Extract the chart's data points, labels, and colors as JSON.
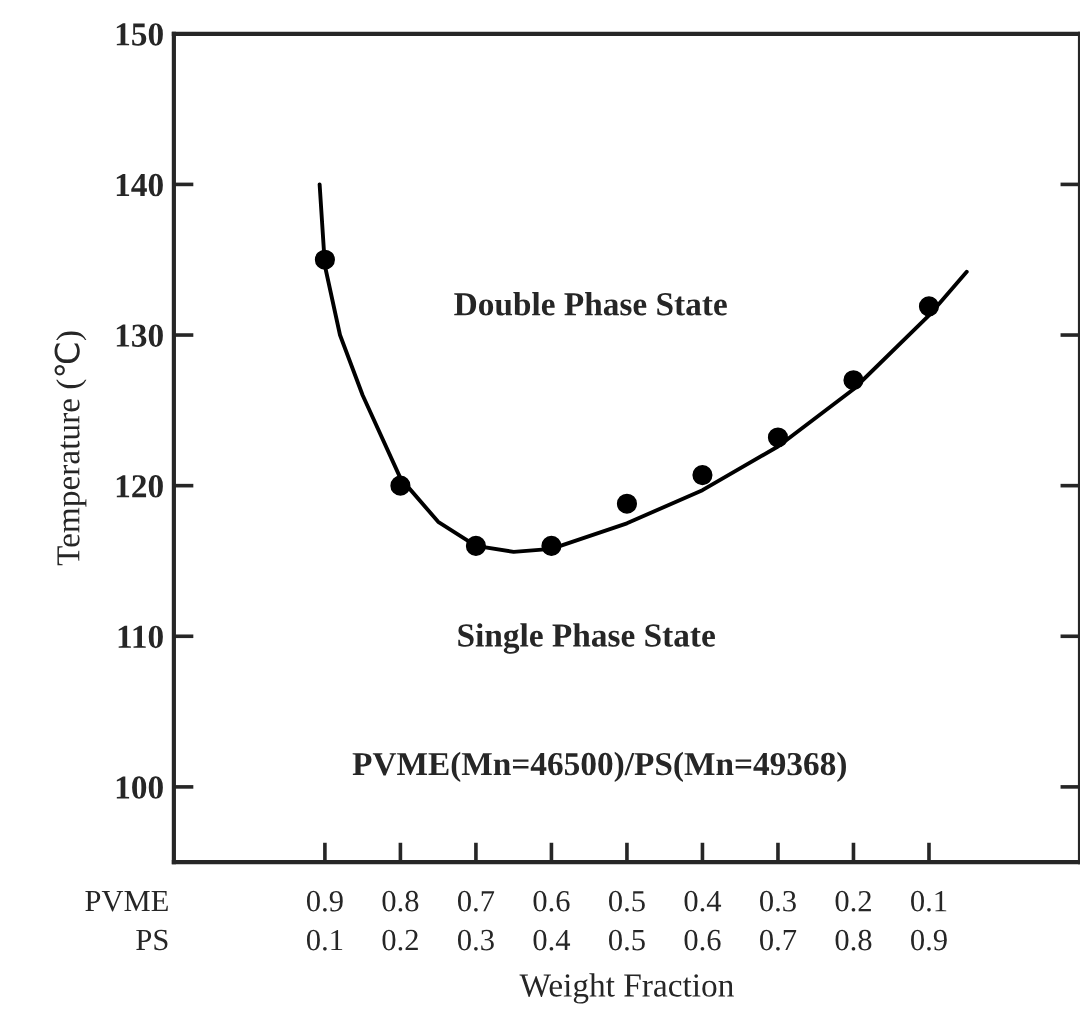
{
  "chart_data": {
    "type": "line",
    "xlabel": "Weight Fraction",
    "ylabel": "Temperature (℃)",
    "series": [
      {
        "type": "scatter",
        "color": "#000000",
        "marker": "circle",
        "x": [
          0.1,
          0.2,
          0.3,
          0.4,
          0.5,
          0.6,
          0.7,
          0.8,
          0.9
        ],
        "values": [
          135,
          120,
          116,
          116,
          118.8,
          120.7,
          123.2,
          127,
          131.9
        ]
      },
      {
        "color": "#000000",
        "marker": "none",
        "line_style": "solid",
        "x": [
          0.093,
          0.1,
          0.12,
          0.15,
          0.2,
          0.25,
          0.3,
          0.35,
          0.4,
          0.5,
          0.6,
          0.7,
          0.8,
          0.9,
          0.95
        ],
        "values": [
          140,
          134.6,
          130,
          126,
          120.5,
          117.6,
          116,
          115.6,
          115.8,
          117.5,
          119.7,
          122.6,
          126.4,
          131.3,
          134.2
        ]
      }
    ],
    "xlim": [
      -0.1,
      1.1
    ],
    "xticks": [
      0.1,
      0.2,
      0.3,
      0.4,
      0.5,
      0.6,
      0.7,
      0.8,
      0.9
    ],
    "x2lim": [
      1.1,
      -0.1
    ],
    "x2ticks": [
      0.9,
      0.8,
      0.7,
      0.6,
      0.5,
      0.4,
      0.3,
      0.2,
      0.1
    ],
    "ylim": [
      95,
      150
    ],
    "yticks": [
      100,
      110,
      120,
      130,
      140,
      150
    ],
    "grid": false,
    "legend": false,
    "annotations": [
      "Double Phase State",
      "Single Phase State",
      "PVME(Mn=46500)/PS(Mn=49368)",
      "PVME",
      "PS"
    ]
  }
}
